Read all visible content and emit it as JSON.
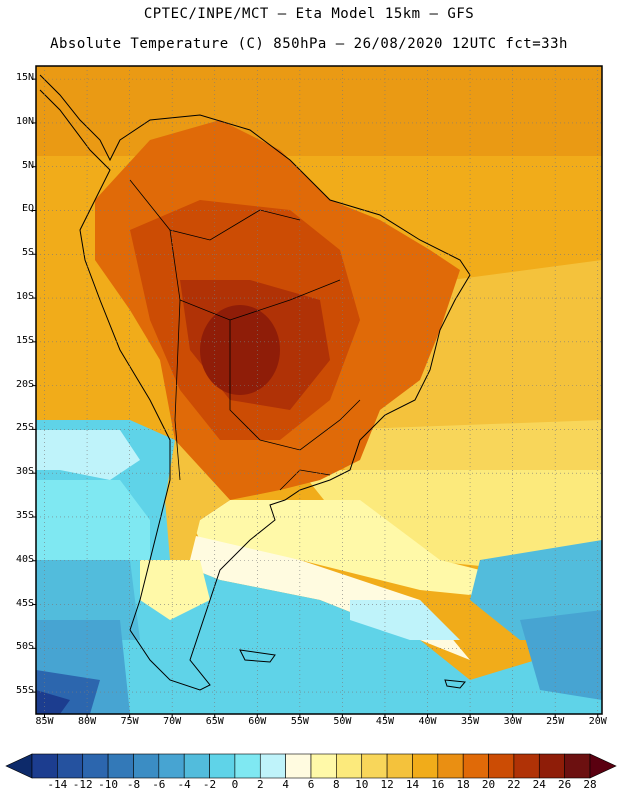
{
  "header": {
    "title_line1": "CPTEC/INPE/MCT —  Eta Model 15km — GFS",
    "title_line2": "Absolute Temperature (C) 850hPa — 26/08/2020 12UTC fct=33h"
  },
  "axes": {
    "lat_labels": [
      "15N",
      "10N",
      "5N",
      "EQ",
      "5S",
      "10S",
      "15S",
      "20S",
      "25S",
      "30S",
      "35S",
      "40S",
      "45S",
      "50S",
      "55S"
    ],
    "lon_labels": [
      "85W",
      "80W",
      "75W",
      "70W",
      "65W",
      "60W",
      "55W",
      "50W",
      "45W",
      "40W",
      "35W",
      "30W",
      "25W",
      "20W"
    ]
  },
  "colorbar": {
    "labels": [
      "-14",
      "-12",
      "-10",
      "-8",
      "-6",
      "-4",
      "-2",
      "0",
      "2",
      "4",
      "6",
      "8",
      "10",
      "12",
      "14",
      "16",
      "18",
      "20",
      "22",
      "24",
      "26",
      "28"
    ],
    "colors": [
      "#1c3d8f",
      "#25529f",
      "#2c66ae",
      "#3379b8",
      "#3b8dc4",
      "#47a4d2",
      "#52bcdc",
      "#5fd3e8",
      "#7fe8f2",
      "#bff3fa",
      "#fffbe0",
      "#fff9a8",
      "#fcea7c",
      "#f8d65a",
      "#f4c23c",
      "#f1ac1a",
      "#ea8f12",
      "#e06a08",
      "#cc4c04",
      "#b03206",
      "#8f1d08",
      "#6c1010"
    ]
  }
}
